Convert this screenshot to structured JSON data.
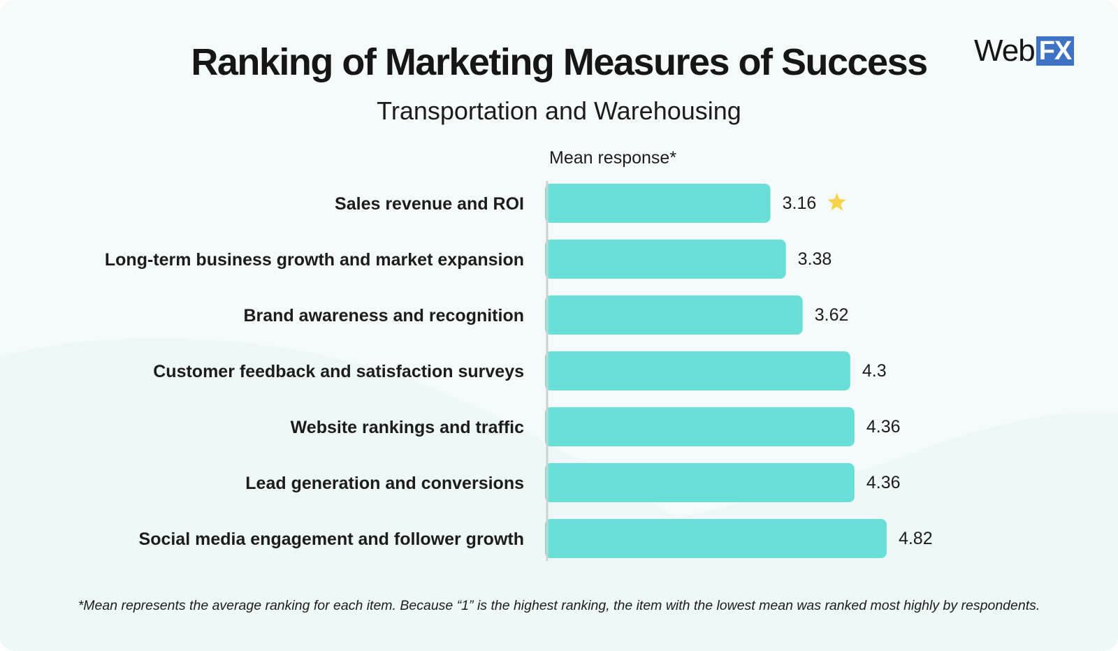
{
  "header": {
    "logo_web": "Web",
    "logo_fx": "FX"
  },
  "chart_data": {
    "type": "bar",
    "orientation": "horizontal",
    "title": "Ranking of Marketing Measures of Success",
    "subtitle": "Transportation and Warehousing",
    "xlabel": "Mean response*",
    "categories": [
      "Sales revenue and ROI",
      "Long-term business growth and market expansion",
      "Brand awareness and recognition",
      "Customer feedback and satisfaction surveys",
      "Website rankings and traffic",
      "Lead generation and conversions",
      "Social media engagement and follower growth"
    ],
    "values": [
      3.16,
      3.38,
      3.62,
      4.3,
      4.36,
      4.36,
      4.82
    ],
    "value_labels": [
      "3.16",
      "3.38",
      "3.62",
      "4.3",
      "4.36",
      "4.36",
      "4.82"
    ],
    "highlight_index": 0,
    "highlight_icon": "star-icon",
    "xlim": [
      0,
      5
    ],
    "grid": false,
    "colors": {
      "bar": "#6adfd7",
      "axis": "#c9d3d2",
      "star": "#f7d24a",
      "text": "#1c1c1c"
    },
    "footnote": "*Mean represents the average ranking for each item. Because “1” is the highest ranking, the item with the lowest mean was ranked most highly by respondents."
  }
}
